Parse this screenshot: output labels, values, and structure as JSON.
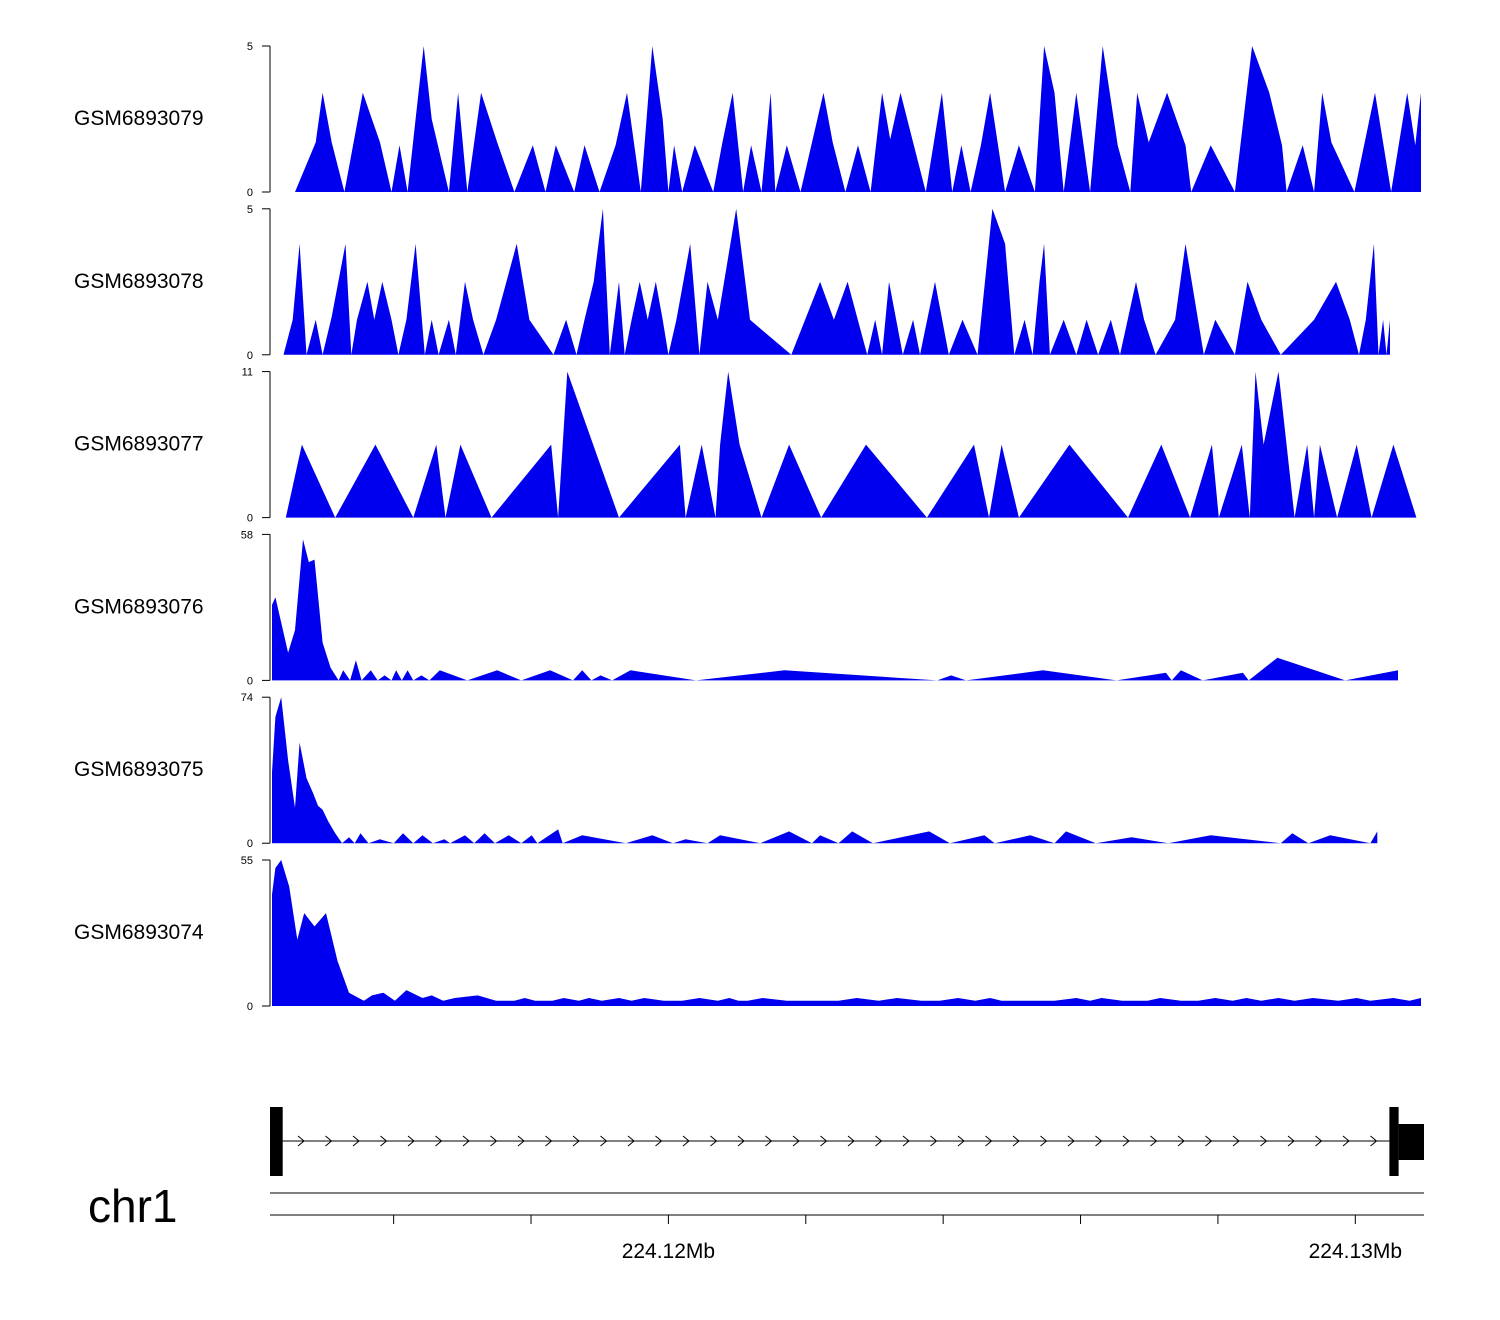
{
  "chart_data": {
    "type": "area",
    "title": "",
    "chromosome": "chr1",
    "x_unit": "bp",
    "xlim": [
      224114200,
      224131000
    ],
    "x_tick_labels": [
      {
        "label": "224.12Mb",
        "pos": 224120000
      },
      {
        "label": "224.13Mb",
        "pos": 224130000
      }
    ],
    "x_minor_ticks": [
      224116000,
      224118000,
      224122000,
      224124000,
      224126000,
      224128000
    ],
    "fill_color": "#0000ee",
    "tracks": [
      {
        "name": "GSM6893079",
        "ylim": [
          0,
          5
        ],
        "y_tick_labels": [
          "0",
          "5"
        ],
        "x": [
          0.02,
          0.038,
          0.044,
          0.052,
          0.063,
          0.079,
          0.094,
          0.104,
          0.111,
          0.118,
          0.125,
          0.132,
          0.139,
          0.154,
          0.162,
          0.17,
          0.182,
          0.196,
          0.211,
          0.227,
          0.238,
          0.247,
          0.263,
          0.272,
          0.285,
          0.299,
          0.309,
          0.321,
          0.331,
          0.34,
          0.345,
          0.35,
          0.357,
          0.368,
          0.384,
          0.392,
          0.401,
          0.41,
          0.417,
          0.426,
          0.434,
          0.438,
          0.448,
          0.46,
          0.48,
          0.488,
          0.499,
          0.51,
          0.521,
          0.531,
          0.538,
          0.547,
          0.558,
          0.569,
          0.583,
          0.592,
          0.6,
          0.608,
          0.617,
          0.625,
          0.638,
          0.65,
          0.664,
          0.672,
          0.681,
          0.689,
          0.7,
          0.712,
          0.723,
          0.736,
          0.747,
          0.753,
          0.763,
          0.779,
          0.795,
          0.8,
          0.817,
          0.838,
          0.853,
          0.868,
          0.879,
          0.883,
          0.897,
          0.907,
          0.914,
          0.922,
          0.942,
          0.96,
          0.974,
          0.988,
          0.995,
          1.0
        ],
        "y": [
          0,
          1.7,
          3.4,
          1.7,
          0,
          3.4,
          1.7,
          0,
          1.6,
          0,
          2.5,
          5,
          2.5,
          0,
          3.4,
          0,
          3.4,
          1.7,
          0,
          1.6,
          0,
          1.6,
          0,
          1.6,
          0,
          1.6,
          3.4,
          0,
          5,
          2.5,
          0,
          1.6,
          0,
          1.6,
          0,
          1.7,
          3.4,
          0,
          1.6,
          0,
          3.4,
          0,
          1.6,
          0,
          3.4,
          1.7,
          0,
          1.6,
          0,
          3.4,
          1.8,
          3.4,
          1.7,
          0,
          3.4,
          0,
          1.6,
          0,
          1.6,
          3.4,
          0,
          1.6,
          0,
          5,
          3.4,
          0,
          3.4,
          0,
          5,
          1.6,
          0,
          3.4,
          1.7,
          3.4,
          1.6,
          0,
          1.6,
          0,
          5,
          3.4,
          1.6,
          0,
          1.6,
          0,
          3.4,
          1.7,
          0,
          3.4,
          0,
          3.4,
          1.6,
          3.4
        ]
      },
      {
        "name": "GSM6893078",
        "ylim": [
          0,
          5
        ],
        "y_tick_labels": [
          "0",
          "5"
        ],
        "x": [
          0.01,
          0.018,
          0.024,
          0.03,
          0.038,
          0.044,
          0.052,
          0.064,
          0.069,
          0.074,
          0.083,
          0.089,
          0.096,
          0.104,
          0.11,
          0.117,
          0.125,
          0.133,
          0.139,
          0.145,
          0.154,
          0.16,
          0.168,
          0.175,
          0.184,
          0.195,
          0.213,
          0.224,
          0.245,
          0.256,
          0.265,
          0.272,
          0.28,
          0.288,
          0.294,
          0.302,
          0.307,
          0.313,
          0.32,
          0.327,
          0.334,
          0.34,
          0.345,
          0.352,
          0.364,
          0.372,
          0.379,
          0.388,
          0.404,
          0.416,
          0.452,
          0.464,
          0.477,
          0.489,
          0.501,
          0.518,
          0.525,
          0.531,
          0.537,
          0.549,
          0.558,
          0.564,
          0.577,
          0.589,
          0.601,
          0.614,
          0.627,
          0.638,
          0.646,
          0.655,
          0.662,
          0.668,
          0.672,
          0.677,
          0.689,
          0.7,
          0.709,
          0.719,
          0.73,
          0.738,
          0.752,
          0.759,
          0.769,
          0.786,
          0.795,
          0.811,
          0.821,
          0.838,
          0.849,
          0.861,
          0.878,
          0.907,
          0.926,
          0.938,
          0.946,
          0.952,
          0.959,
          0.963,
          0.967,
          0.97,
          0.973
        ],
        "y": [
          0,
          1.2,
          3.8,
          0,
          1.2,
          0,
          1.3,
          3.8,
          0,
          1.2,
          2.5,
          1.2,
          2.5,
          1.2,
          0,
          1.2,
          3.8,
          0,
          1.2,
          0,
          1.2,
          0,
          2.5,
          1.2,
          0,
          1.2,
          3.8,
          1.2,
          0,
          1.2,
          0,
          1.2,
          2.5,
          5,
          0,
          2.5,
          0,
          1.2,
          2.5,
          1.2,
          2.5,
          1.2,
          0,
          1.2,
          3.8,
          0,
          2.5,
          1.2,
          5,
          1.2,
          0,
          1.2,
          2.5,
          1.2,
          2.5,
          0,
          1.2,
          0,
          2.5,
          0,
          1.2,
          0,
          2.5,
          0,
          1.2,
          0,
          5,
          3.8,
          0,
          1.2,
          0,
          2.5,
          3.8,
          0,
          1.2,
          0,
          1.2,
          0,
          1.2,
          0,
          2.5,
          1.2,
          0,
          1.2,
          3.8,
          0,
          1.2,
          0,
          2.5,
          1.2,
          0,
          1.2,
          2.5,
          1.2,
          0,
          1.2,
          3.8,
          0,
          1.2,
          0,
          1.2
        ]
      },
      {
        "name": "GSM6893077",
        "ylim": [
          0,
          11
        ],
        "y_tick_labels": [
          "0",
          "11"
        ],
        "x": [
          0.012,
          0.026,
          0.055,
          0.09,
          0.123,
          0.143,
          0.151,
          0.164,
          0.191,
          0.243,
          0.249,
          0.257,
          0.302,
          0.355,
          0.36,
          0.374,
          0.386,
          0.39,
          0.397,
          0.407,
          0.426,
          0.45,
          0.478,
          0.517,
          0.57,
          0.611,
          0.624,
          0.635,
          0.65,
          0.694,
          0.745,
          0.774,
          0.799,
          0.818,
          0.824,
          0.844,
          0.851,
          0.856,
          0.863,
          0.876,
          0.89,
          0.901,
          0.907,
          0.912,
          0.927,
          0.944,
          0.957,
          0.976,
          0.996
        ],
        "y": [
          0,
          5.5,
          0,
          5.5,
          0,
          5.5,
          0,
          5.5,
          0,
          5.5,
          0,
          11,
          0,
          5.5,
          0,
          5.5,
          0,
          5.5,
          11,
          5.5,
          0,
          5.5,
          0,
          5.5,
          0,
          5.5,
          0,
          5.5,
          0,
          5.5,
          0,
          5.5,
          0,
          5.5,
          0,
          5.5,
          0,
          11,
          5.5,
          11,
          0,
          5.5,
          0,
          5.5,
          0,
          5.5,
          0,
          5.5,
          0
        ]
      },
      {
        "name": "GSM6893076",
        "ylim": [
          0,
          58
        ],
        "y_tick_labels": [
          "0",
          "58"
        ],
        "x": [
          0,
          0.003,
          0.008,
          0.014,
          0.02,
          0.027,
          0.032,
          0.037,
          0.044,
          0.051,
          0.058,
          0.062,
          0.068,
          0.073,
          0.078,
          0.086,
          0.092,
          0.098,
          0.104,
          0.108,
          0.113,
          0.118,
          0.123,
          0.13,
          0.137,
          0.146,
          0.17,
          0.196,
          0.217,
          0.242,
          0.262,
          0.27,
          0.278,
          0.286,
          0.296,
          0.312,
          0.369,
          0.446,
          0.579,
          0.591,
          0.604,
          0.671,
          0.735,
          0.778,
          0.783,
          0.791,
          0.81,
          0.845,
          0.85,
          0.875,
          0.934,
          0.98
        ],
        "y": [
          30,
          33,
          23,
          11,
          20,
          56,
          47,
          48,
          15,
          5,
          0,
          4,
          0,
          8,
          0,
          4,
          0,
          2,
          0,
          4,
          0,
          4,
          0,
          2,
          0,
          4,
          0,
          4,
          0,
          4,
          0,
          4,
          0,
          2,
          0,
          4,
          0,
          4,
          0,
          2,
          0,
          4,
          0,
          3,
          0,
          4,
          0,
          3,
          0,
          9,
          0,
          4
        ]
      },
      {
        "name": "GSM6893075",
        "ylim": [
          0,
          74
        ],
        "y_tick_labels": [
          "0",
          "74"
        ],
        "x": [
          0,
          0.003,
          0.008,
          0.014,
          0.02,
          0.024,
          0.03,
          0.036,
          0.04,
          0.044,
          0.049,
          0.055,
          0.061,
          0.067,
          0.072,
          0.077,
          0.084,
          0.094,
          0.106,
          0.114,
          0.123,
          0.131,
          0.14,
          0.15,
          0.155,
          0.168,
          0.176,
          0.185,
          0.194,
          0.206,
          0.217,
          0.226,
          0.231,
          0.249,
          0.253,
          0.27,
          0.308,
          0.331,
          0.349,
          0.36,
          0.379,
          0.39,
          0.425,
          0.45,
          0.47,
          0.477,
          0.493,
          0.505,
          0.523,
          0.572,
          0.59,
          0.62,
          0.629,
          0.66,
          0.681,
          0.691,
          0.717,
          0.748,
          0.78,
          0.817,
          0.878,
          0.888,
          0.902,
          0.921,
          0.956,
          0.962
        ],
        "y": [
          36,
          64,
          74,
          42,
          18,
          51,
          33,
          25,
          19,
          17,
          11,
          5,
          0,
          3,
          0,
          5,
          0,
          2,
          0,
          5,
          0,
          4,
          0,
          2,
          0,
          4,
          0,
          5,
          0,
          4,
          0,
          4,
          0,
          7,
          0,
          4,
          0,
          4,
          0,
          2,
          0,
          4,
          0,
          6,
          0,
          4,
          0,
          6,
          0,
          6,
          0,
          4,
          0,
          4,
          0,
          6,
          0,
          3,
          0,
          4,
          0,
          5,
          0,
          4,
          0,
          6
        ]
      },
      {
        "name": "GSM6893074",
        "ylim": [
          0,
          55
        ],
        "y_tick_labels": [
          "0",
          "55"
        ],
        "x": [
          0,
          0.003,
          0.008,
          0.015,
          0.022,
          0.028,
          0.037,
          0.047,
          0.057,
          0.067,
          0.08,
          0.087,
          0.097,
          0.107,
          0.117,
          0.131,
          0.139,
          0.149,
          0.159,
          0.179,
          0.195,
          0.211,
          0.22,
          0.229,
          0.244,
          0.254,
          0.267,
          0.276,
          0.287,
          0.302,
          0.313,
          0.324,
          0.341,
          0.357,
          0.372,
          0.388,
          0.398,
          0.406,
          0.414,
          0.427,
          0.448,
          0.465,
          0.493,
          0.509,
          0.528,
          0.544,
          0.565,
          0.581,
          0.597,
          0.612,
          0.625,
          0.635,
          0.653,
          0.667,
          0.681,
          0.7,
          0.712,
          0.722,
          0.74,
          0.762,
          0.773,
          0.791,
          0.806,
          0.821,
          0.836,
          0.848,
          0.861,
          0.876,
          0.89,
          0.906,
          0.928,
          0.944,
          0.956,
          0.976,
          0.99,
          1.0
        ],
        "y": [
          42,
          52,
          55,
          45,
          25,
          35,
          30,
          35,
          17,
          5,
          2,
          4,
          5,
          2,
          6,
          3,
          4,
          2,
          3,
          4,
          2,
          2,
          3,
          2,
          2,
          3,
          2,
          3,
          2,
          3,
          2,
          3,
          2,
          2,
          3,
          2,
          3,
          2,
          2,
          3,
          2,
          2,
          2,
          3,
          2,
          3,
          2,
          2,
          3,
          2,
          3,
          2,
          2,
          2,
          2,
          3,
          2,
          3,
          2,
          2,
          3,
          2,
          2,
          3,
          2,
          3,
          2,
          3,
          2,
          3,
          2,
          3,
          2,
          3,
          2,
          3
        ]
      }
    ],
    "gene_model": {
      "strand": "+",
      "exons": [
        [
          0.0,
          0.011
        ],
        [
          0.97,
          0.978
        ]
      ],
      "utr_tail": [
        0.978,
        1.0
      ]
    }
  }
}
